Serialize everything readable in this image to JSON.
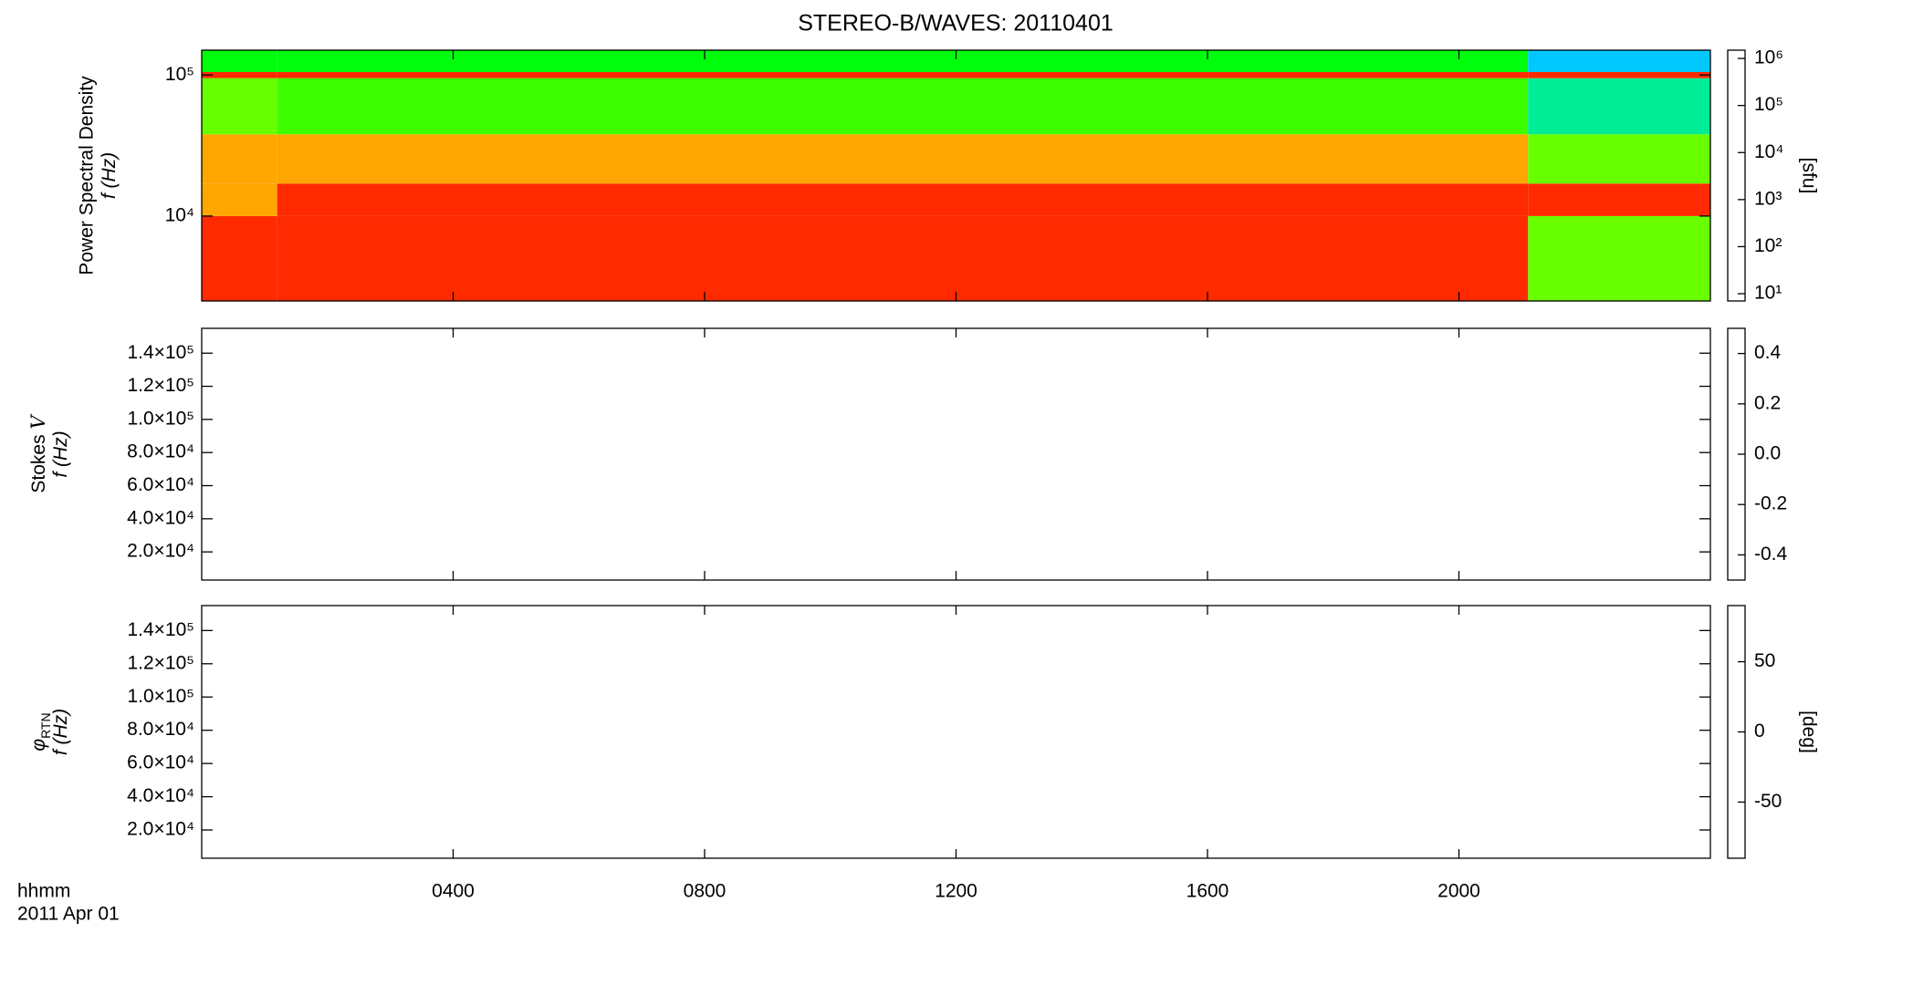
{
  "chart_data": [
    {
      "type": "heatmap",
      "title": "STEREO-B/WAVES: 20110401",
      "ylabel": [
        "Power Spectral Density",
        "f (Hz)"
      ],
      "ylog": true,
      "ylim": [
        2500,
        150000
      ],
      "yticks": [
        {
          "value": 10000,
          "label": "10⁴"
        },
        {
          "value": 100000,
          "label": "10⁵"
        }
      ],
      "x_edges": [
        0,
        1.2,
        21.1,
        24
      ],
      "y_edges": [
        2500,
        10000,
        17000,
        38000,
        95000,
        105000,
        150000
      ],
      "values": [
        [
          1000000,
          1000000,
          30000
        ],
        [
          300000,
          1000000,
          1000000
        ],
        [
          300000,
          300000,
          30000
        ],
        [
          30000,
          20000,
          3000
        ],
        [
          1000000,
          1000000,
          1000000
        ],
        [
          10000,
          10000,
          1000
        ]
      ],
      "zlog": true,
      "zlim": [
        7,
        1500000
      ],
      "zlabel": "[sfu]",
      "zticks": [
        {
          "value": 10,
          "label": "10¹"
        },
        {
          "value": 100,
          "label": "10²"
        },
        {
          "value": 1000,
          "label": "10³"
        },
        {
          "value": 10000,
          "label": "10⁴"
        },
        {
          "value": 100000,
          "label": "10⁵"
        },
        {
          "value": 1000000,
          "label": "10⁶"
        }
      ]
    },
    {
      "type": "heatmap",
      "ylabel": [
        {
          "text": "Stokes ",
          "italic": "V"
        },
        "f (Hz)"
      ],
      "ylim": [
        3000,
        155000
      ],
      "yticks": [
        {
          "value": 20000,
          "label": "2.0×10⁴"
        },
        {
          "value": 40000,
          "label": "4.0×10⁴"
        },
        {
          "value": 60000,
          "label": "6.0×10⁴"
        },
        {
          "value": 80000,
          "label": "8.0×10⁴"
        },
        {
          "value": 100000,
          "label": "1.0×10⁵"
        },
        {
          "value": 120000,
          "label": "1.2×10⁵"
        },
        {
          "value": 140000,
          "label": "1.4×10⁵"
        }
      ],
      "zlim": [
        -0.5,
        0.5
      ],
      "zticks": [
        -0.4,
        -0.2,
        {
          "value": 0,
          "label": "0.0"
        },
        0.2,
        0.4
      ]
    },
    {
      "type": "heatmap",
      "ylabel": [
        {
          "text": "φ",
          "sub": "RTN"
        },
        "f (Hz)"
      ],
      "ylim": [
        3000,
        155000
      ],
      "yticks": [
        {
          "value": 20000,
          "label": "2.0×10⁴"
        },
        {
          "value": 40000,
          "label": "4.0×10⁴"
        },
        {
          "value": 60000,
          "label": "6.0×10⁴"
        },
        {
          "value": 80000,
          "label": "8.0×10⁴"
        },
        {
          "value": 100000,
          "label": "1.0×10⁵"
        },
        {
          "value": 120000,
          "label": "1.2×10⁵"
        },
        {
          "value": 140000,
          "label": "1.4×10⁵"
        }
      ],
      "zlim": [
        -90,
        90
      ],
      "zticks": [
        -50,
        0,
        50
      ],
      "zlabel": "[deg]",
      "xlim": [
        0,
        24
      ],
      "xticks": [
        {
          "value": 4,
          "label": "0400"
        },
        {
          "value": 8,
          "label": "0800"
        },
        {
          "value": 12,
          "label": "1200"
        },
        {
          "value": 16,
          "label": "1600"
        },
        {
          "value": 20,
          "label": "2000"
        }
      ],
      "xlabel": "hhmm",
      "date": "2011 Apr 01"
    }
  ]
}
